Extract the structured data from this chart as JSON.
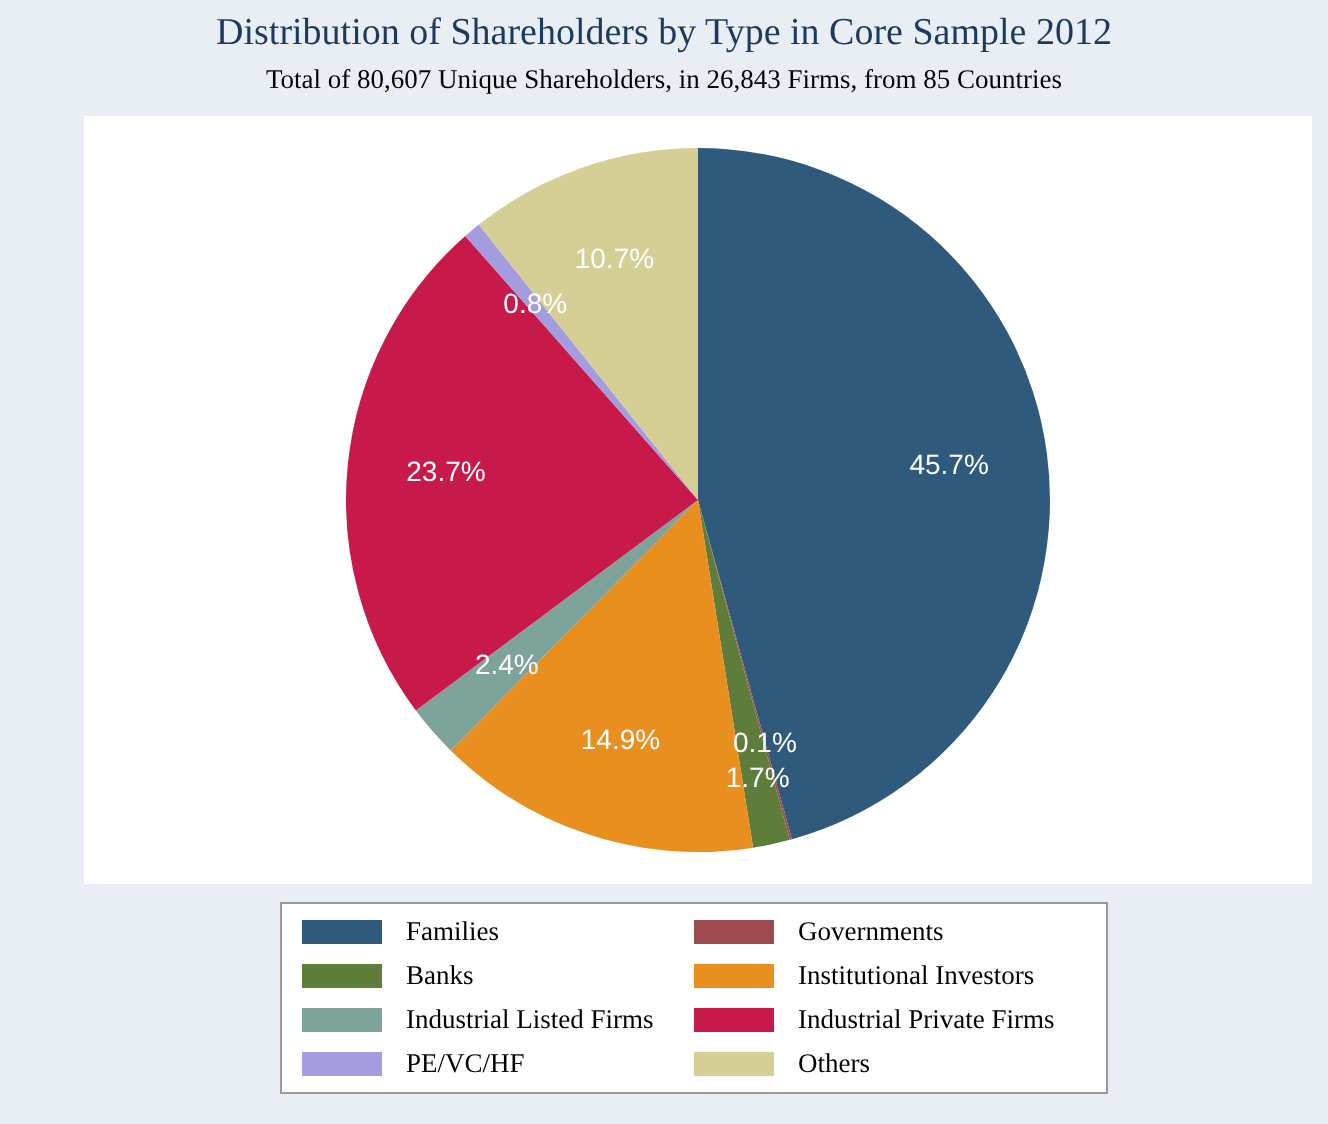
{
  "chart_data": {
    "type": "pie",
    "title": "Distribution of Shareholders by Type in Core Sample 2012",
    "subtitle": "Total of 80,607 Unique Shareholders, in 26,843 Firms, from 85 Countries",
    "categories": [
      "Families",
      "Governments",
      "Banks",
      "Institutional Investors",
      "Industrial Listed Firms",
      "Industrial Private Firms",
      "PE/VC/HF",
      "Others"
    ],
    "values": [
      45.7,
      0.1,
      1.7,
      14.9,
      2.4,
      23.7,
      0.8,
      10.7
    ],
    "value_labels": [
      "45.7%",
      "0.1%",
      "1.7%",
      "14.9%",
      "2.4%",
      "23.7%",
      "0.8%",
      "10.7%"
    ],
    "colors": [
      "#2f5a7c",
      "#9c4a4e",
      "#5e7d3b",
      "#e88f20",
      "#7da39a",
      "#c81a4a",
      "#a39de0",
      "#d5cf95"
    ],
    "legend": "bottom"
  }
}
